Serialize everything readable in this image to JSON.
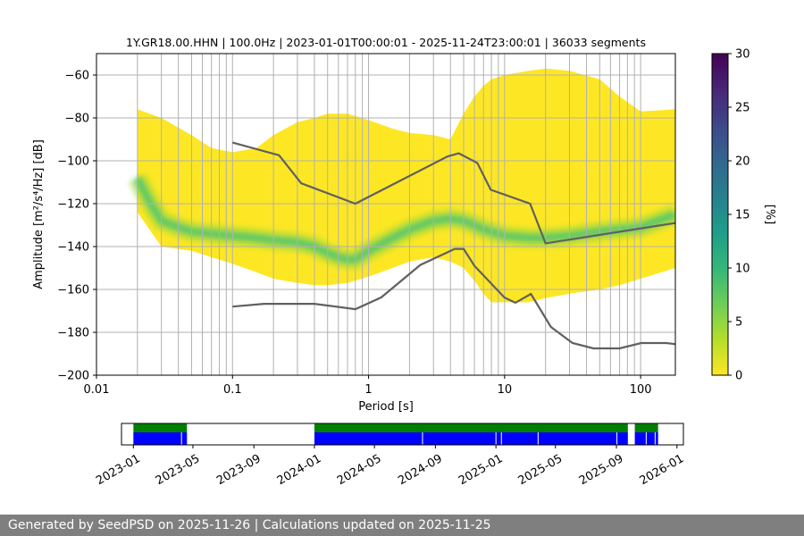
{
  "footer": {
    "text": "Generated by SeedPSD on 2025-11-26 | Calculations updated on 2025-11-25"
  },
  "colors": {
    "reference_lines": "#606060",
    "grid": "#b0b0b0",
    "availability_bar": "#0000ff",
    "availability_top": "#008000",
    "footer_background": "#7f7f7f",
    "colormap": [
      "#fde725",
      "#b5de2b",
      "#6ece58",
      "#35b779",
      "#1f9e89",
      "#26828e",
      "#31688e",
      "#3e4989",
      "#482878",
      "#440154"
    ]
  },
  "chart_data": [
    {
      "type": "heatmap",
      "title": "1Y.GR18.00.HHN | 100.0Hz | 2023-01-01T00:00:01 - 2025-11-24T23:00:01 | 36033 segments",
      "xlabel": "Period [s]",
      "ylabel": "Amplitude [m²/s⁴/Hz] [dB]",
      "xscale": "log",
      "xlim": [
        0.01,
        180
      ],
      "ylim": [
        -200,
        -50
      ],
      "xticks": [
        {
          "value": 0.01,
          "label": "0.01"
        },
        {
          "value": 0.1,
          "label": "0.1"
        },
        {
          "value": 1,
          "label": "1"
        },
        {
          "value": 10,
          "label": "10"
        },
        {
          "value": 100,
          "label": "100"
        }
      ],
      "yticks": [
        {
          "value": -60,
          "label": "−60"
        },
        {
          "value": -80,
          "label": "−80"
        },
        {
          "value": -100,
          "label": "−100"
        },
        {
          "value": -120,
          "label": "−120"
        },
        {
          "value": -140,
          "label": "−140"
        },
        {
          "value": -160,
          "label": "−160"
        },
        {
          "value": -180,
          "label": "−180"
        },
        {
          "value": -200,
          "label": "−200"
        }
      ],
      "grid": true,
      "grid_periods": [
        0.02,
        0.03,
        0.04,
        0.05,
        0.06,
        0.07,
        0.08,
        0.09,
        0.1,
        0.2,
        0.3,
        0.4,
        0.5,
        0.6,
        0.7,
        0.8,
        0.9,
        1,
        2,
        3,
        4,
        5,
        6,
        7,
        8,
        9,
        10,
        20,
        30,
        40,
        50,
        60,
        70,
        80,
        90,
        100
      ],
      "colorbar": {
        "label": "[%]",
        "range": [
          0,
          30
        ],
        "ticks": [
          {
            "value": 0,
            "label": "0"
          },
          {
            "value": 5,
            "label": "5"
          },
          {
            "value": 10,
            "label": "10"
          },
          {
            "value": 15,
            "label": "15"
          },
          {
            "value": 20,
            "label": "20"
          },
          {
            "value": 25,
            "label": "25"
          },
          {
            "value": 30,
            "label": "30"
          }
        ]
      },
      "psd_envelope": {
        "period": [
          0.02,
          0.03,
          0.05,
          0.07,
          0.1,
          0.15,
          0.2,
          0.3,
          0.4,
          0.5,
          0.7,
          1,
          1.5,
          2,
          3,
          4,
          5,
          6,
          7,
          8,
          10,
          15,
          20,
          30,
          50,
          70,
          100,
          180
        ],
        "upper_db": [
          -76,
          -80,
          -88,
          -94,
          -96,
          -94,
          -88,
          -82,
          -80,
          -78,
          -78,
          -81,
          -85,
          -87,
          -88,
          -90,
          -78,
          -70,
          -65,
          -62,
          -60,
          -58,
          -57,
          -58,
          -62,
          -70,
          -77,
          -76
        ],
        "lower_db": [
          -124,
          -140,
          -142,
          -145,
          -148,
          -152,
          -155,
          -157,
          -158,
          -158,
          -157,
          -154,
          -150,
          -147,
          -145,
          -147,
          -150,
          -156,
          -162,
          -166,
          -166,
          -166,
          -164,
          -162,
          -160,
          -158,
          -155,
          -150
        ]
      },
      "psd_mode": {
        "period": [
          0.02,
          0.025,
          0.03,
          0.04,
          0.05,
          0.07,
          0.1,
          0.15,
          0.2,
          0.3,
          0.4,
          0.5,
          0.6,
          0.7,
          0.8,
          1,
          1.5,
          2,
          3,
          4,
          5,
          6,
          7,
          8,
          10,
          15,
          20,
          30,
          50,
          70,
          100,
          180
        ],
        "db": [
          -108,
          -120,
          -128,
          -131,
          -133,
          -134,
          -135,
          -136,
          -137,
          -138,
          -140,
          -143,
          -145,
          -146,
          -146,
          -142,
          -136,
          -132,
          -128,
          -127,
          -128,
          -130,
          -132,
          -133,
          -135,
          -136,
          -136,
          -135,
          -133,
          -132,
          -131,
          -125
        ]
      },
      "nhnm": {
        "period": [
          0.1,
          0.22,
          0.32,
          0.8,
          3.8,
          4.6,
          6.3,
          7.9,
          15.4,
          20,
          180
        ],
        "db": [
          -91.5,
          -97.4,
          -110.5,
          -120,
          -98,
          -96.5,
          -101,
          -113.5,
          -120,
          -138.5,
          -129
        ]
      },
      "nlnm": {
        "period": [
          0.1,
          0.17,
          0.4,
          0.8,
          1.24,
          2.4,
          4.3,
          5,
          6,
          10,
          12,
          15.6,
          21.9,
          31.6,
          45,
          70,
          101,
          154,
          180
        ],
        "db": [
          -168,
          -166.7,
          -166.7,
          -169.2,
          -163.7,
          -148.6,
          -141.1,
          -141.1,
          -149,
          -163.8,
          -166.2,
          -162.1,
          -177.5,
          -185,
          -187.5,
          -187.5,
          -185,
          -185,
          -185.5
        ]
      }
    },
    {
      "type": "availability",
      "xticks": [
        "2023-01",
        "2023-05",
        "2023-09",
        "2024-01",
        "2024-05",
        "2024-09",
        "2025-01",
        "2025-05",
        "2025-09",
        "2026-01"
      ],
      "xlim": [
        "2022-12-08",
        "2026-01-14"
      ],
      "coverage_segments": [
        {
          "start": "2023-01-01",
          "end": "2023-04-19"
        },
        {
          "start": "2024-01-01",
          "end": "2025-09-24"
        },
        {
          "start": "2025-10-08",
          "end": "2025-11-24"
        }
      ],
      "gaps": [
        "2023-04-08",
        "2024-08-06",
        "2025-01-01",
        "2025-01-12",
        "2025-03-27",
        "2025-09-02",
        "2025-10-31",
        "2025-11-18"
      ]
    }
  ]
}
